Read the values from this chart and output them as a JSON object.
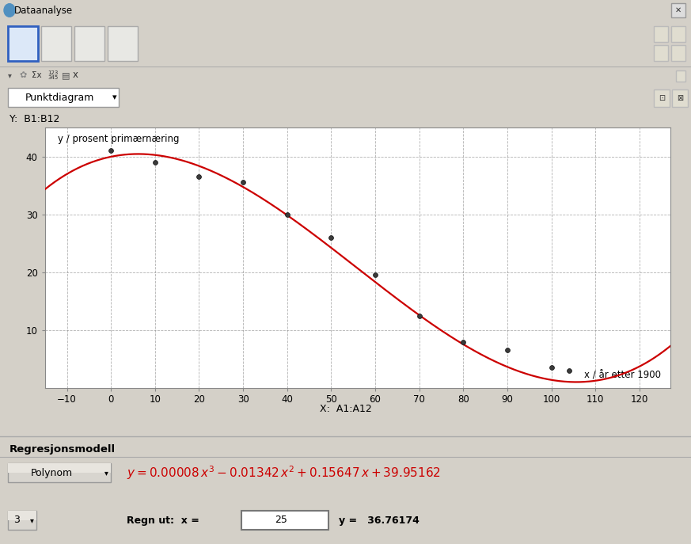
{
  "title_bar": "Dataanalyse",
  "dropdown_label": "Punktdiagram",
  "y_label_top": "Y:  B1:B12",
  "x_label_bottom": "X:  A1:A12",
  "axis_ylabel": "y / prosent primærnæring",
  "axis_xlabel": "x / år etter 1900",
  "xlim": [
    -15,
    127
  ],
  "ylim": [
    0,
    45
  ],
  "xticks": [
    -10,
    0,
    10,
    20,
    30,
    40,
    50,
    60,
    70,
    80,
    90,
    100,
    110,
    120
  ],
  "yticks": [
    10,
    20,
    30,
    40
  ],
  "data_x": [
    0,
    10,
    20,
    30,
    40,
    50,
    60,
    70,
    80,
    90,
    100,
    104
  ],
  "data_y": [
    41.0,
    39.0,
    36.5,
    35.5,
    30.0,
    26.0,
    19.5,
    12.5,
    8.0,
    6.5,
    3.5,
    3.0
  ],
  "poly_coeffs": [
    8e-05,
    -0.01342,
    0.15647,
    39.95162
  ],
  "curve_color": "#cc0000",
  "point_color": "#555555",
  "grid_color": "#888888",
  "bg_plot": "#ffffff",
  "bg_outer": "#d4d0c8",
  "bg_toolbar": "#e0ddd8",
  "bg_bottom": "#e8e5df",
  "title_bar_color": "#c8daf0",
  "regression_label": "Regresjonsmodell",
  "model_type": "Polynom",
  "degree": "3",
  "regn_label": "Regn ut:  x = ",
  "regn_x": "25",
  "regn_y": "36.76174",
  "formula_color": "#cc0000",
  "fig_width": 8.73,
  "fig_height": 6.87,
  "dpi": 100
}
